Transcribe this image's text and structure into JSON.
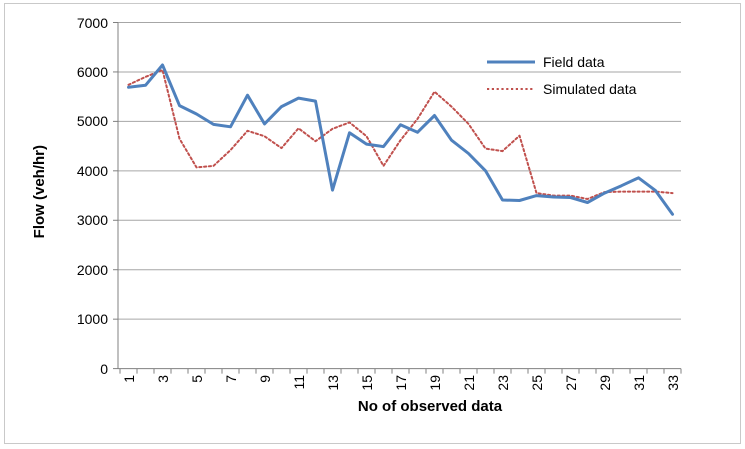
{
  "chart_data": {
    "type": "line",
    "title": "",
    "xlabel": "No of observed data",
    "ylabel": "Flow (veh/hr)",
    "categories": [
      1,
      2,
      3,
      4,
      5,
      6,
      7,
      8,
      9,
      10,
      11,
      12,
      13,
      14,
      15,
      16,
      17,
      18,
      19,
      20,
      21,
      22,
      23,
      24,
      25,
      26,
      27,
      28,
      29,
      30,
      31,
      32,
      33
    ],
    "x_tick_labels": [
      "1",
      "3",
      "5",
      "7",
      "9",
      "11",
      "13",
      "15",
      "17",
      "19",
      "21",
      "23",
      "25",
      "27",
      "29",
      "31",
      "33"
    ],
    "y_ticks": [
      0,
      1000,
      2000,
      3000,
      4000,
      5000,
      6000,
      7000
    ],
    "ylim": [
      0,
      7000
    ],
    "grid": "horizontal",
    "legend_position": "inside-top-right",
    "series": [
      {
        "name": "Field data",
        "style": "solid",
        "color": "#4f81bd",
        "width": 3,
        "values": [
          5690,
          5730,
          6140,
          5320,
          5150,
          4940,
          4890,
          5530,
          4950,
          5300,
          5470,
          5410,
          3610,
          4770,
          4540,
          4490,
          4930,
          4780,
          5120,
          4620,
          4350,
          4000,
          3410,
          3400,
          3500,
          3470,
          3460,
          3360,
          3550,
          3700,
          3860,
          3600,
          3120
        ]
      },
      {
        "name": "Simulated data",
        "style": "dotted",
        "color": "#c0504d",
        "width": 2,
        "values": [
          5740,
          5900,
          6040,
          4650,
          4070,
          4100,
          4420,
          4810,
          4700,
          4460,
          4860,
          4600,
          4850,
          4980,
          4700,
          4100,
          4620,
          5050,
          5600,
          5300,
          4950,
          4450,
          4400,
          4710,
          3550,
          3500,
          3500,
          3430,
          3570,
          3580,
          3580,
          3580,
          3550
        ]
      }
    ],
    "colors": {
      "gridline": "#a6a6a6",
      "axis": "#808080",
      "text": "#000000",
      "frame_border": "#c9c9c9",
      "background": "#ffffff"
    }
  }
}
